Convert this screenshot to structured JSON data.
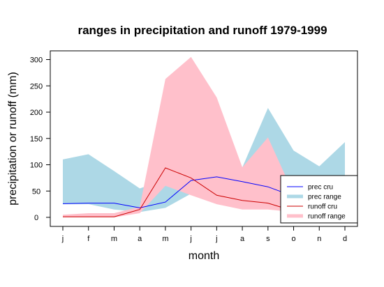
{
  "chart_data": {
    "type": "line",
    "title": "ranges in precipitation and runoff 1979-1999",
    "xlabel": "month",
    "ylabel": "precipitation or runoff (mm)",
    "categories": [
      "j",
      "f",
      "m",
      "a",
      "m",
      "j",
      "j",
      "a",
      "s",
      "o",
      "n",
      "d"
    ],
    "ylim": [
      0,
      300
    ],
    "yticks": [
      0,
      50,
      100,
      150,
      200,
      250,
      300
    ],
    "grid": false,
    "legend_position": "bottom-right",
    "bands": [
      {
        "name": "prec range",
        "color": "#add8e6",
        "low": [
          25,
          25,
          15,
          10,
          18,
          45,
          60,
          50,
          40,
          35,
          45,
          45
        ],
        "high": [
          110,
          120,
          88,
          55,
          72,
          55,
          78,
          95,
          208,
          127,
          97,
          143
        ]
      },
      {
        "name": "runoff range",
        "color": "#ffc0cb",
        "low": [
          0,
          0,
          0,
          8,
          60,
          42,
          25,
          15,
          15,
          10,
          8,
          8
        ],
        "high": [
          5,
          8,
          8,
          20,
          263,
          305,
          228,
          95,
          152,
          45,
          38,
          38
        ]
      }
    ],
    "series": [
      {
        "name": "prec cru",
        "color": "#0000ff",
        "values": [
          26,
          27,
          27,
          18,
          29,
          70,
          77,
          68,
          58,
          40,
          45,
          55
        ]
      },
      {
        "name": "runoff cru",
        "color": "#cc0000",
        "values": [
          1,
          1,
          1,
          15,
          94,
          75,
          42,
          32,
          27,
          12,
          14,
          15
        ]
      }
    ],
    "legend": [
      {
        "label": "prec cru",
        "kind": "line",
        "color": "#0000ff"
      },
      {
        "label": "prec range",
        "kind": "band",
        "color": "#add8e6"
      },
      {
        "label": "runoff cru",
        "kind": "line",
        "color": "#cc0000"
      },
      {
        "label": "runoff range",
        "kind": "band",
        "color": "#ffc0cb"
      }
    ]
  }
}
